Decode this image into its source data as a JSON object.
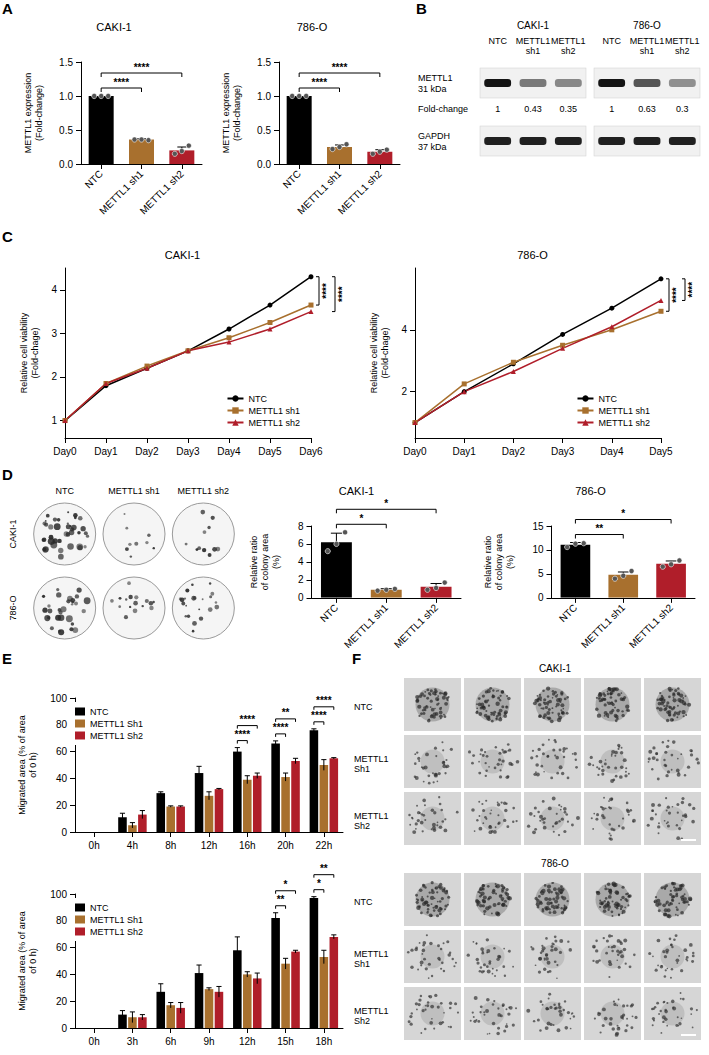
{
  "panel_letters": [
    "A",
    "B",
    "C",
    "D",
    "E",
    "F"
  ],
  "chart_data": [
    {
      "type": "bar",
      "title": "CAKI-1",
      "y_label": "METTL1 expression (Fold-change)",
      "categories": [
        "NTC",
        "METTL1 sh1",
        "METTL1 sh2"
      ],
      "values": [
        1.0,
        0.36,
        0.2
      ],
      "errors": [
        0,
        0.01,
        0.05
      ],
      "points": [
        [
          1,
          1,
          1
        ],
        [
          0.36,
          0.36,
          0.35
        ],
        [
          0.15,
          0.19,
          0.27
        ]
      ],
      "colors": [
        "#000000",
        "#a8702e",
        "#b01e2a"
      ],
      "ylim": [
        0,
        1.5
      ],
      "yticks": [
        {
          "value": 0,
          "label": "0.0"
        },
        {
          "value": 0.5,
          "label": "0.5"
        },
        {
          "value": 1,
          "label": "1.0"
        },
        {
          "value": 1.5,
          "label": "1.5"
        }
      ],
      "grid": false,
      "annotations": [
        {
          "from": "NTC",
          "to": "METTL1 sh1",
          "text": "****"
        },
        {
          "from": "NTC",
          "to": "METTL1 sh2",
          "text": "****"
        }
      ]
    },
    {
      "type": "bar",
      "title": "786-O",
      "y_label": "METTL1 expression (Fold-change)",
      "categories": [
        "NTC",
        "METTL1 sh1",
        "METTL1 sh2"
      ],
      "values": [
        1.0,
        0.25,
        0.18
      ],
      "errors": [
        0,
        0.03,
        0.03
      ],
      "points": [
        [
          1,
          1,
          1
        ],
        [
          0.22,
          0.25,
          0.29
        ],
        [
          0.15,
          0.18,
          0.21
        ]
      ],
      "colors": [
        "#000000",
        "#a8702e",
        "#b01e2a"
      ],
      "ylim": [
        0,
        1.5
      ],
      "yticks": [
        {
          "value": 0,
          "label": "0.0"
        },
        {
          "value": 0.5,
          "label": "0.5"
        },
        {
          "value": 1,
          "label": "1.0"
        },
        {
          "value": 1.5,
          "label": "1.5"
        }
      ],
      "grid": false,
      "annotations": [
        {
          "from": "NTC",
          "to": "METTL1 sh1",
          "text": "****"
        },
        {
          "from": "NTC",
          "to": "METTL1 sh2",
          "text": "****"
        }
      ]
    },
    {
      "type": "line",
      "title": "CAKI-1",
      "y_label": "Relative cell viability (Fold-chage)",
      "categories": [
        "Day0",
        "Day1",
        "Day2",
        "Day3",
        "Day4",
        "Day5",
        "Day6"
      ],
      "series": [
        {
          "name": "NTC",
          "color": "#000000",
          "marker": "circle",
          "values": [
            1,
            1.8,
            2.2,
            2.6,
            3.1,
            3.65,
            4.3
          ]
        },
        {
          "name": "METTL1 sh1",
          "color": "#a8702e",
          "marker": "square",
          "values": [
            1,
            1.85,
            2.25,
            2.6,
            2.9,
            3.25,
            3.65
          ]
        },
        {
          "name": "METTL1 sh2",
          "color": "#b01e2a",
          "marker": "triangle",
          "values": [
            1,
            1.85,
            2.2,
            2.6,
            2.8,
            3.1,
            3.5
          ]
        }
      ],
      "ylim": [
        0.6,
        4.5
      ],
      "yticks": [
        1,
        2,
        3,
        4
      ],
      "grid": false,
      "legend": "bottom-right",
      "annotations": [
        {
          "from": "NTC",
          "to": "METTL1 sh1",
          "text": "****"
        },
        {
          "from": "NTC",
          "to": "METTL1 sh2",
          "text": "****"
        }
      ]
    },
    {
      "type": "line",
      "title": "786-O",
      "y_label": "Relative cell viability (Fold-chage)",
      "categories": [
        "Day0",
        "Day1",
        "Day2",
        "Day3",
        "Day4",
        "Day5"
      ],
      "series": [
        {
          "name": "NTC",
          "color": "#000000",
          "marker": "circle",
          "values": [
            1,
            2.0,
            2.9,
            3.85,
            4.7,
            5.65
          ]
        },
        {
          "name": "METTL1 sh1",
          "color": "#a8702e",
          "marker": "square",
          "values": [
            1,
            2.25,
            2.95,
            3.5,
            4.0,
            4.6
          ]
        },
        {
          "name": "METTL1 sh2",
          "color": "#b01e2a",
          "marker": "triangle",
          "values": [
            1,
            2.0,
            2.65,
            3.4,
            4.1,
            4.95
          ]
        }
      ],
      "ylim": [
        0.5,
        6
      ],
      "yticks": [
        2,
        4
      ],
      "grid": false,
      "legend": "bottom-right",
      "annotations": [
        {
          "from": "NTC",
          "to": "METTL1 sh1",
          "text": "****"
        },
        {
          "from": "NTC",
          "to": "METTL1 sh2",
          "text": "****"
        }
      ]
    },
    {
      "type": "bar",
      "title": "CAKI-1",
      "y_label": "Relative ratio of colony area (%)",
      "categories": [
        "NTC",
        "METTL1 sh1",
        "METTL1 sh2"
      ],
      "values": [
        6.2,
        0.9,
        1.25
      ],
      "errors": [
        1.0,
        0.12,
        0.35
      ],
      "points": [
        [
          5.2,
          6.0,
          7.3
        ],
        [
          0.8,
          0.9,
          1.0
        ],
        [
          0.9,
          1.1,
          1.7
        ]
      ],
      "colors": [
        "#000000",
        "#a8702e",
        "#b01e2a"
      ],
      "ylim": [
        0,
        8
      ],
      "yticks": [
        0,
        2,
        4,
        6,
        8
      ],
      "grid": false,
      "annotations": [
        {
          "from": "NTC",
          "to": "METTL1 sh1",
          "text": "*"
        },
        {
          "from": "NTC",
          "to": "METTL1 sh2",
          "text": "*"
        }
      ]
    },
    {
      "type": "bar",
      "title": "786-O",
      "y_label": "Relative ratio of colony area (%)",
      "categories": [
        "NTC",
        "METTL1 sh1",
        "METTL1 sh2"
      ],
      "values": [
        11.1,
        4.8,
        7.1
      ],
      "errors": [
        0.45,
        0.6,
        0.6
      ],
      "points": [
        [
          10.6,
          11.3,
          11.4
        ],
        [
          4.0,
          4.6,
          5.6
        ],
        [
          6.5,
          7.0,
          7.8
        ]
      ],
      "colors": [
        "#000000",
        "#a8702e",
        "#b01e2a"
      ],
      "ylim": [
        0,
        15
      ],
      "yticks": [
        0,
        5,
        10,
        15
      ],
      "grid": false,
      "annotations": [
        {
          "from": "NTC",
          "to": "METTL1 sh1",
          "text": "**"
        },
        {
          "from": "NTC",
          "to": "METTL1 sh2",
          "text": "*"
        }
      ]
    },
    {
      "type": "bar",
      "y_label": "Migrated area (% of area of 0 h)",
      "categories": [
        "0h",
        "4h",
        "8h",
        "12h",
        "16h",
        "20h",
        "22h"
      ],
      "series": [
        {
          "name": "NTC",
          "color": "#000000",
          "values": [
            0,
            11,
            29,
            44,
            60,
            66,
            76
          ],
          "errors": [
            0,
            3,
            1,
            5,
            3,
            2,
            1
          ]
        },
        {
          "name": "METTL1 Sh1",
          "color": "#a8702e",
          "values": [
            0,
            5,
            19,
            27,
            39,
            41,
            50
          ],
          "errors": [
            0,
            2,
            0.5,
            3,
            3,
            3,
            4
          ]
        },
        {
          "name": "METTL1 Sh2",
          "color": "#b01e2a",
          "values": [
            0,
            13,
            19,
            32,
            42,
            53,
            55
          ],
          "errors": [
            0,
            3,
            0.5,
            0.5,
            2,
            2,
            0.5
          ]
        }
      ],
      "ylim": [
        0,
        100
      ],
      "yticks": [
        0,
        20,
        40,
        60,
        80,
        100
      ],
      "grid": false,
      "legend": "top-left",
      "annotations": [
        {
          "category": "16h",
          "from": "NTC",
          "to": "METTL1 Sh1",
          "text": "****"
        },
        {
          "category": "16h",
          "from": "NTC",
          "to": "METTL1 Sh2",
          "text": "****"
        },
        {
          "category": "20h",
          "from": "NTC",
          "to": "METTL1 Sh1",
          "text": "****"
        },
        {
          "category": "20h",
          "from": "NTC",
          "to": "METTL1 Sh2",
          "text": "**"
        },
        {
          "category": "22h",
          "from": "NTC",
          "to": "METTL1 Sh1",
          "text": "****"
        },
        {
          "category": "22h",
          "from": "NTC",
          "to": "METTL1 Sh2",
          "text": "****"
        }
      ]
    },
    {
      "type": "bar",
      "y_label": "Migrated area (% of area of 0 h)",
      "categories": [
        "0h",
        "3h",
        "6h",
        "9h",
        "12h",
        "15h",
        "18h"
      ],
      "series": [
        {
          "name": "NTC",
          "color": "#000000",
          "values": [
            0,
            10,
            27,
            41,
            58,
            82,
            97
          ],
          "errors": [
            0,
            3,
            6,
            6,
            10,
            4,
            1
          ]
        },
        {
          "name": "METTL1 Sh1",
          "color": "#a8702e",
          "values": [
            0,
            8,
            17,
            29,
            40,
            48,
            53
          ],
          "errors": [
            0,
            4,
            2,
            1,
            2,
            4,
            5
          ]
        },
        {
          "name": "METTL1 Sh2",
          "color": "#b01e2a",
          "values": [
            0,
            8,
            15,
            27,
            37,
            57,
            68
          ],
          "errors": [
            0,
            2,
            4,
            4,
            4,
            1,
            1.5
          ]
        }
      ],
      "ylim": [
        0,
        100
      ],
      "yticks": [
        0,
        20,
        40,
        60,
        80,
        100
      ],
      "grid": false,
      "legend": "top-left",
      "annotations": [
        {
          "category": "15h",
          "from": "NTC",
          "to": "METTL1 Sh1",
          "text": "**"
        },
        {
          "category": "15h",
          "from": "NTC",
          "to": "METTL1 Sh2",
          "text": "*"
        },
        {
          "category": "18h",
          "from": "NTC",
          "to": "METTL1 Sh1",
          "text": "*"
        },
        {
          "category": "18h",
          "from": "NTC",
          "to": "METTL1 Sh2",
          "text": "**"
        }
      ]
    }
  ],
  "blot": {
    "panels": [
      {
        "title": "CAKI-1",
        "lanes": [
          "NTC",
          "METTL1 sh1",
          "METTL1 sh2"
        ],
        "fold_change": [
          1,
          0.43,
          0.35
        ]
      },
      {
        "title": "786-O",
        "lanes": [
          "NTC",
          "METTL1 sh1",
          "METTL1 sh2"
        ],
        "fold_change": [
          1,
          0.63,
          0.3
        ]
      }
    ],
    "bands": [
      {
        "protein": "METTL1",
        "size": "31 kDa"
      },
      {
        "protein": "GAPDH",
        "size": "37 kDa"
      }
    ],
    "fold_change_label": "Fold-change"
  },
  "colony_images": {
    "columns": [
      "NTC",
      "METTL1 sh1",
      "METTL1 sh2"
    ],
    "rows": [
      "CAKI-1",
      "786-O"
    ]
  },
  "spheroid_images": {
    "groups": [
      {
        "title": "CAKI-1",
        "rows": [
          "NTC",
          "METTL1 Sh1",
          "METTL1 Sh2"
        ],
        "images_per_row": 5
      },
      {
        "title": "786-O",
        "rows": [
          "NTC",
          "METTL1 Sh1",
          "METTL1 Sh2"
        ],
        "images_per_row": 5
      }
    ]
  }
}
